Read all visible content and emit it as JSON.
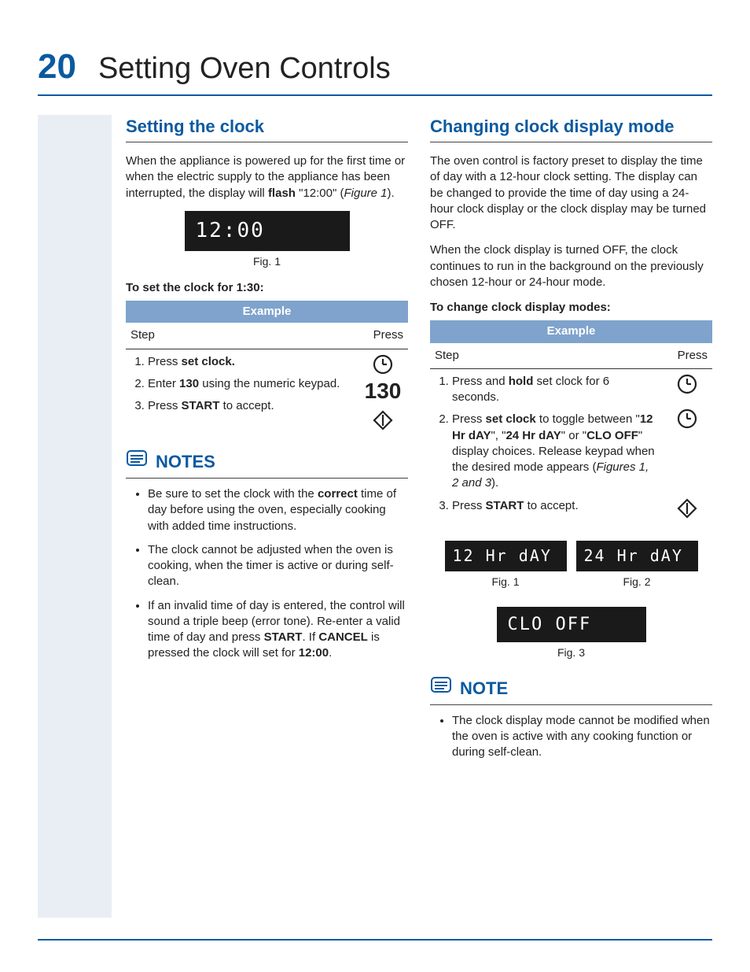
{
  "pageNumber": "20",
  "pageTitle": "Setting Oven Controls",
  "leftColumn": {
    "section1": {
      "title": "Setting the clock",
      "intro_html": "When the appliance is powered up for the first time or when the electric supply to the appliance has been interrupted, the display will <b>flash</b> \"12:00\" (<i>Figure 1</i>).",
      "display": "12:00",
      "displayCaption": "Fig. 1",
      "subhead": "To set the clock for 1:30:",
      "table": {
        "header": "Example",
        "col1": "Step",
        "col2": "Press",
        "rows": [
          {
            "step_html": "Press <b>set clock.</b>",
            "pressIcon": "clock"
          },
          {
            "step_html": "Enter <b>130</b> using the  numeric keypad.",
            "pressIcon": "130"
          },
          {
            "step_html": "Press <b>START</b> to accept.",
            "pressIcon": "start"
          }
        ]
      }
    },
    "notes": {
      "title": "NOTES",
      "items": [
        "Be sure to set the clock with the <b>correct</b> time of day before using the oven, especially cooking with added time instructions.",
        "The clock cannot be adjusted when the oven is cooking, when the timer is active or during self-clean.",
        "If an invalid time of day is entered, the control will sound a triple beep (error tone). Re-enter a valid time of day and press <b>START</b>. If <b>CANCEL</b> is pressed the clock will set for <b>12:00</b>."
      ]
    }
  },
  "rightColumn": {
    "section1": {
      "title": "Changing clock display mode",
      "para1": "The oven control is factory preset to display the time of day with a 12-hour clock setting. The display can be changed to provide the time of day using a 24-hour clock display or the clock display may be turned OFF.",
      "para2": "When the clock display is turned OFF, the clock continues to run in the background on the previously chosen 12-hour or 24-hour mode.",
      "subhead": "To change clock display modes:",
      "table": {
        "header": "Example",
        "col1": "Step",
        "col2": "Press",
        "rows": [
          {
            "step_html": "Press and <b>hold</b> set clock for 6 seconds.",
            "pressIcon": "clock"
          },
          {
            "step_html": "Press <b>set clock</b> to toggle between \"<b>12 Hr dAY</b>\", \"<b>24 Hr dAY</b>\" or \"<b>CLO OFF</b>\" display choices. Release keypad when the desired mode appears (<i>Figures 1, 2 and 3</i>).",
            "pressIcon": "clock"
          },
          {
            "step_html": "Press <b>START</b> to accept.",
            "pressIcon": "start"
          }
        ]
      },
      "displays": {
        "d1": "12 Hr dAY",
        "c1": "Fig. 1",
        "d2": "24 Hr dAY",
        "c2": "Fig. 2",
        "d3": "CLO  OFF",
        "c3": "Fig. 3"
      }
    },
    "note": {
      "title": "NOTE",
      "items": [
        "The clock display mode cannot be modified when the oven is active with any cooking function or during self-clean."
      ]
    }
  },
  "icons": {
    "clock": "clock-icon",
    "start": "start-icon",
    "note": "note-icon"
  },
  "colors": {
    "accent": "#0a5aa0",
    "gutter": "#e9eef5",
    "tableHeader": "#7fa3cc"
  }
}
